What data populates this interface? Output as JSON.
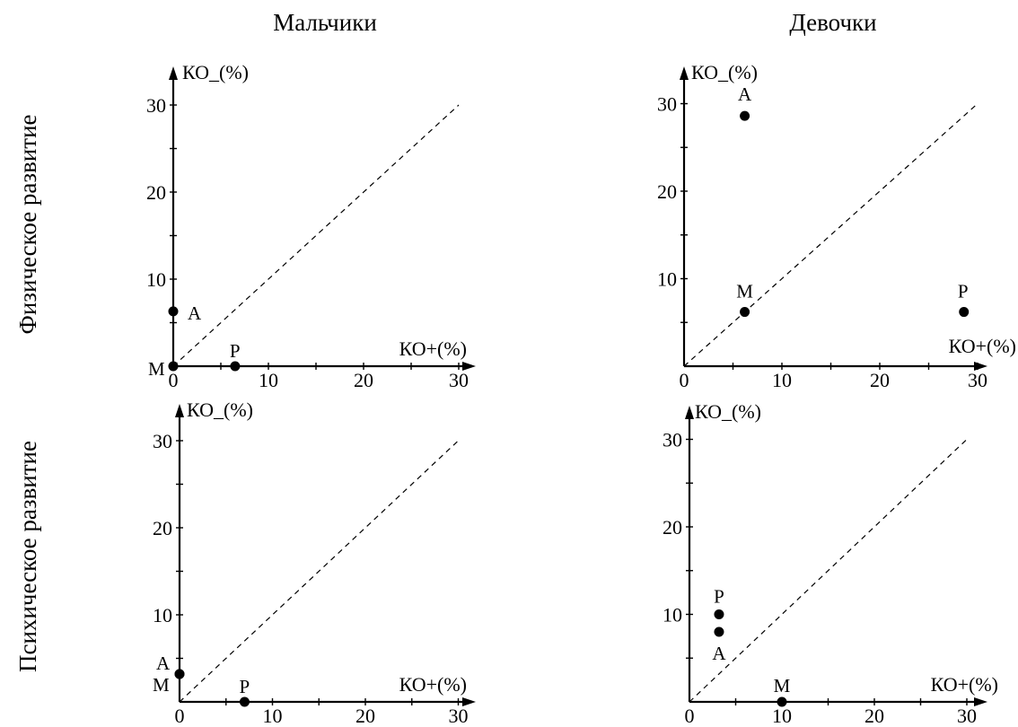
{
  "columns": [
    "Мальчики",
    "Девочки"
  ],
  "rows": [
    "Физическое развитие",
    "Психическое развитие"
  ],
  "chart_data": [
    {
      "type": "scatter",
      "column": "Мальчики",
      "row": "Физическое развитие",
      "xlabel": "КО+(%)",
      "ylabel": "КО_(%)",
      "xlim": [
        0,
        30
      ],
      "ylim": [
        0,
        30
      ],
      "xticks": [
        "0",
        "10",
        "20",
        "30"
      ],
      "yticks": [
        "10",
        "20",
        "30"
      ],
      "diagonal": true,
      "points": [
        {
          "label": "А",
          "x": 0,
          "y": 6.3
        },
        {
          "label": "М",
          "x": 0,
          "y": 0
        },
        {
          "label": "Р",
          "x": 6.5,
          "y": 0
        }
      ]
    },
    {
      "type": "scatter",
      "column": "Девочки",
      "row": "Физическое развитие",
      "xlabel": "КО+(%)",
      "ylabel": "КО_(%)",
      "xlim": [
        0,
        30
      ],
      "ylim": [
        0,
        30
      ],
      "xticks": [
        "0",
        "10",
        "20",
        "30"
      ],
      "yticks": [
        "10",
        "20",
        "30"
      ],
      "diagonal": true,
      "points": [
        {
          "label": "А",
          "x": 6.2,
          "y": 28.6
        },
        {
          "label": "М",
          "x": 6.2,
          "y": 6.2
        },
        {
          "label": "Р",
          "x": 28.6,
          "y": 6.2
        }
      ]
    },
    {
      "type": "scatter",
      "column": "Мальчики",
      "row": "Психическое развитие",
      "xlabel": "КО+(%)",
      "ylabel": "КО_(%)",
      "xlim": [
        0,
        30
      ],
      "ylim": [
        0,
        30
      ],
      "xticks": [
        "0",
        "10",
        "20",
        "30"
      ],
      "yticks": [
        "10",
        "20",
        "30"
      ],
      "diagonal": true,
      "points": [
        {
          "label": "А",
          "x": 0,
          "y": 3.2
        },
        {
          "label": "М",
          "x": 0,
          "y": 3.2
        },
        {
          "label": "Р",
          "x": 7,
          "y": 0
        }
      ]
    },
    {
      "type": "scatter",
      "column": "Девочки",
      "row": "Психическое развитие",
      "xlabel": "КО+(%)",
      "ylabel": "КО_(%)",
      "xlim": [
        0,
        30
      ],
      "ylim": [
        0,
        30
      ],
      "xticks": [
        "0",
        "10",
        "20",
        "30"
      ],
      "yticks": [
        "10",
        "20",
        "30"
      ],
      "diagonal": true,
      "points": [
        {
          "label": "Р",
          "x": 3.2,
          "y": 10
        },
        {
          "label": "А",
          "x": 3.2,
          "y": 8
        },
        {
          "label": "М",
          "x": 10,
          "y": 0
        }
      ]
    }
  ]
}
